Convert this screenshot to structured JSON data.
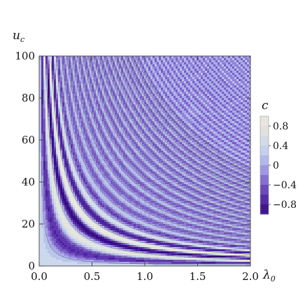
{
  "chart_data": {
    "type": "heatmap",
    "title": "",
    "xlabel": "λ",
    "xlabel_sub": "0",
    "ylabel": "u",
    "ylabel_sub": "c",
    "xlim": [
      0.0,
      2.0
    ],
    "ylim": [
      0,
      100
    ],
    "x_ticks": [
      "0.0",
      "0.5",
      "1.0",
      "1.5",
      "2.0"
    ],
    "x_tick_values": [
      0.0,
      0.5,
      1.0,
      1.5,
      2.0
    ],
    "y_ticks": [
      "0",
      "20",
      "40",
      "60",
      "80",
      "100"
    ],
    "y_tick_values": [
      0,
      20,
      40,
      60,
      80,
      100
    ],
    "legend": {
      "title": "c",
      "range": [
        -1,
        1
      ],
      "tick_labels": [
        "0.8",
        "0.4",
        "0",
        "−0.4",
        "−0.8"
      ],
      "tick_values": [
        0.8,
        0.4,
        0.0,
        -0.4,
        -0.8
      ]
    },
    "colors": [
      "#3b0f8a",
      "#5b30b0",
      "#7a56c6",
      "#9b85d8",
      "#aeb0ea",
      "#c8d6ee",
      "#e6e4dc"
    ],
    "description_of_field": "oscillatory contour levels c(λ0, u_c), stripes follow hyperbolae λ0·u_c = const; light at small λ0·u_c, deep purple bands near λ0·u_c ≈ 10"
  }
}
